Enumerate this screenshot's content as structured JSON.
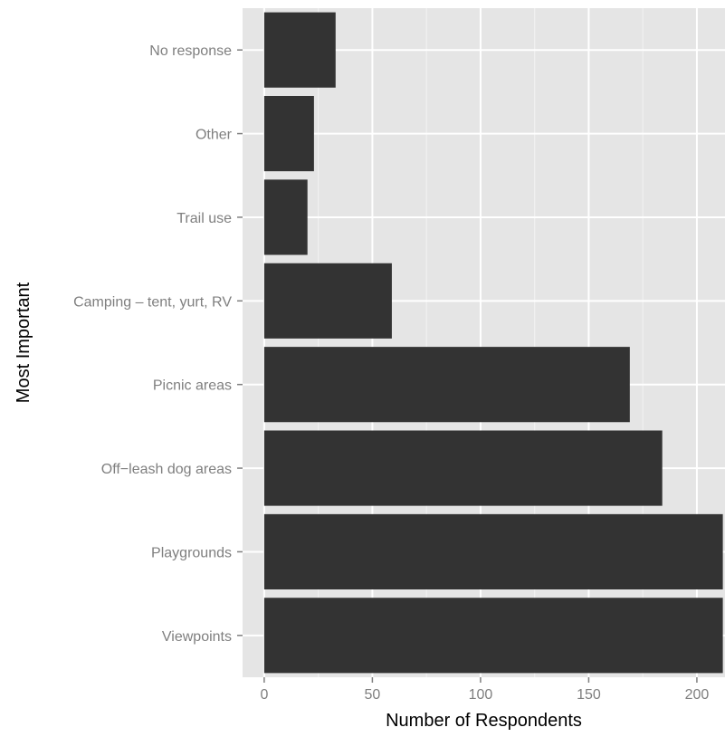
{
  "chart_data": {
    "type": "bar",
    "orientation": "horizontal",
    "categories": [
      "Viewpoints",
      "Playgrounds",
      "Off−leash dog areas",
      "Picnic areas",
      "Camping – tent, yurt, RV",
      "Trail use",
      "Other",
      "No response"
    ],
    "values": [
      212,
      212,
      184,
      169,
      59,
      20,
      23,
      33
    ],
    "xlabel": "Number of Respondents",
    "ylabel": "Most Important",
    "xlim": [
      -10,
      213
    ],
    "xticks": [
      0,
      50,
      100,
      150,
      200
    ],
    "grid": true,
    "legend": "none",
    "colors": {
      "bar": "#333333",
      "panel_background": "#e5e5e5",
      "grid_major": "#ffffff",
      "grid_minor": "#f2f2f2",
      "tick_label": "#7f7f7f",
      "axis_title": "#000000"
    }
  }
}
